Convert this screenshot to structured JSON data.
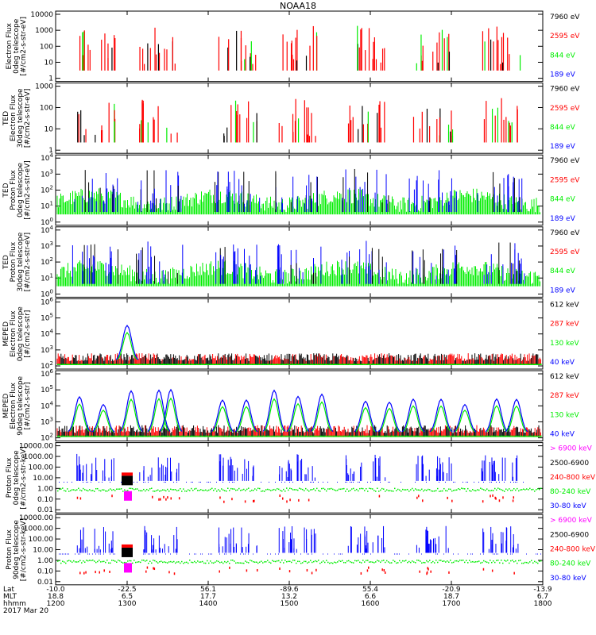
{
  "title": "NOAA18",
  "colors": {
    "black": "#000000",
    "red": "#ff0000",
    "green": "#00ee00",
    "blue": "#0000ff",
    "magenta": "#ff00ff"
  },
  "chart_data": [
    {
      "type": "scatter",
      "ylabel": [
        "Electron Flux",
        "0deg telescope",
        "[#/cm2-s-str-eV]"
      ],
      "ylog": true,
      "yticks": [
        "1",
        "10",
        "100",
        "1000",
        "10000"
      ],
      "legend": [
        {
          "label": "7960 eV",
          "color": "#000000"
        },
        {
          "label": "2595 eV",
          "color": "#ff0000"
        },
        {
          "label": "844 eV",
          "color": "#00ee00"
        },
        {
          "label": "189 eV",
          "color": "#0000ff"
        }
      ]
    },
    {
      "type": "scatter",
      "ylabel": [
        "TED",
        "Electron Flux",
        "30deg telescope",
        "[#/cm2-s-str-eV]"
      ],
      "ylog": true,
      "yticks": [
        "1",
        "10",
        "100",
        "1000"
      ],
      "legend": [
        {
          "label": "7960 eV",
          "color": "#000000"
        },
        {
          "label": "2595 eV",
          "color": "#ff0000"
        },
        {
          "label": "844 eV",
          "color": "#00ee00"
        },
        {
          "label": "189 eV",
          "color": "#0000ff"
        }
      ]
    },
    {
      "type": "scatter",
      "ylabel": [
        "TED",
        "Proton Flux",
        "0deg telescope",
        "[#/cm2-s-str-eV]"
      ],
      "ylog": true,
      "yticks": [
        "10^0",
        "10^1",
        "10^2",
        "10^3",
        "10^4"
      ],
      "legend": [
        {
          "label": "7960 eV",
          "color": "#000000"
        },
        {
          "label": "2595 eV",
          "color": "#ff0000"
        },
        {
          "label": "844 eV",
          "color": "#00ee00"
        },
        {
          "label": "189 eV",
          "color": "#0000ff"
        }
      ]
    },
    {
      "type": "scatter",
      "ylabel": [
        "TED",
        "Proton Flux",
        "30deg telescope",
        "[#/cm2-s-str-eV]"
      ],
      "ylog": true,
      "yticks": [
        "10^0",
        "10^1",
        "10^2",
        "10^3",
        "10^4"
      ],
      "legend": [
        {
          "label": "7960 eV",
          "color": "#000000"
        },
        {
          "label": "2595 eV",
          "color": "#ff0000"
        },
        {
          "label": "844 eV",
          "color": "#00ee00"
        },
        {
          "label": "189 eV",
          "color": "#0000ff"
        }
      ]
    },
    {
      "type": "scatter",
      "ylabel": [
        "MEPED",
        "Electron Flux",
        "0deg telescope",
        "[#/cm2-s-str]"
      ],
      "ylog": true,
      "yticks": [
        "10^2",
        "10^3",
        "10^4",
        "10^5",
        "10^6"
      ],
      "legend": [
        {
          "label": "612 keV",
          "color": "#000000"
        },
        {
          "label": "287 keV",
          "color": "#ff0000"
        },
        {
          "label": "130 keV",
          "color": "#00ee00"
        },
        {
          "label": "40 keV",
          "color": "#0000ff"
        }
      ]
    },
    {
      "type": "scatter",
      "ylabel": [
        "MEPED",
        "Electron Flux",
        "90deg telescope",
        "[#/cm2-s-str]"
      ],
      "ylog": true,
      "yticks": [
        "10^2",
        "10^3",
        "10^4",
        "10^5",
        "10^6"
      ],
      "legend": [
        {
          "label": "612 keV",
          "color": "#000000"
        },
        {
          "label": "287 keV",
          "color": "#ff0000"
        },
        {
          "label": "130 keV",
          "color": "#00ee00"
        },
        {
          "label": "40 keV",
          "color": "#0000ff"
        }
      ]
    },
    {
      "type": "scatter",
      "ylabel": [
        "Proton Flux",
        "0deg telescope",
        "[#/cm2-s-str-keV]"
      ],
      "ylog": true,
      "yticks": [
        "0.01",
        "0.10",
        "1.00",
        "10.00",
        "100.00",
        "1000.00",
        "10000.00"
      ],
      "legend": [
        {
          "label": "> 6900 keV",
          "color": "#ff00ff"
        },
        {
          "label": "2500-6900",
          "color": "#000000"
        },
        {
          "label": "240-800 keV",
          "color": "#ff0000"
        },
        {
          "label": "80-240 keV",
          "color": "#00ee00"
        },
        {
          "label": "30-80 keV",
          "color": "#0000ff"
        }
      ]
    },
    {
      "type": "scatter",
      "ylabel": [
        "Proton Flux",
        "90deg telescope",
        "[#/cm2-s-str-keV]"
      ],
      "ylog": true,
      "yticks": [
        "0.01",
        "0.10",
        "1.00",
        "10.00",
        "100.00",
        "1000.00",
        "10000.00"
      ],
      "legend": [
        {
          "label": "> 6900 keV",
          "color": "#ff00ff"
        },
        {
          "label": "2500-6900",
          "color": "#000000"
        },
        {
          "label": "240-800 keV",
          "color": "#ff0000"
        },
        {
          "label": "80-240 keV",
          "color": "#00ee00"
        },
        {
          "label": "30-80 keV",
          "color": "#0000ff"
        }
      ]
    }
  ],
  "xaxis": {
    "row_labels": [
      "Lat",
      "MLT",
      "hhmm"
    ],
    "date": "2017 Mar 20",
    "ticks": [
      {
        "lat": "-10.0",
        "mlt": "18.8",
        "hhmm": "1200"
      },
      {
        "lat": "-22.5",
        "mlt": "6.5",
        "hhmm": "1300"
      },
      {
        "lat": "56.1",
        "mlt": "17.7",
        "hhmm": "1400"
      },
      {
        "lat": "-89.6",
        "mlt": "13.2",
        "hhmm": "1500"
      },
      {
        "lat": "55.4",
        "mlt": "6.6",
        "hhmm": "1600"
      },
      {
        "lat": "-20.9",
        "mlt": "18.7",
        "hhmm": "1700"
      },
      {
        "lat": "-13.9",
        "mlt": "6.7",
        "hhmm": "1800"
      }
    ]
  }
}
